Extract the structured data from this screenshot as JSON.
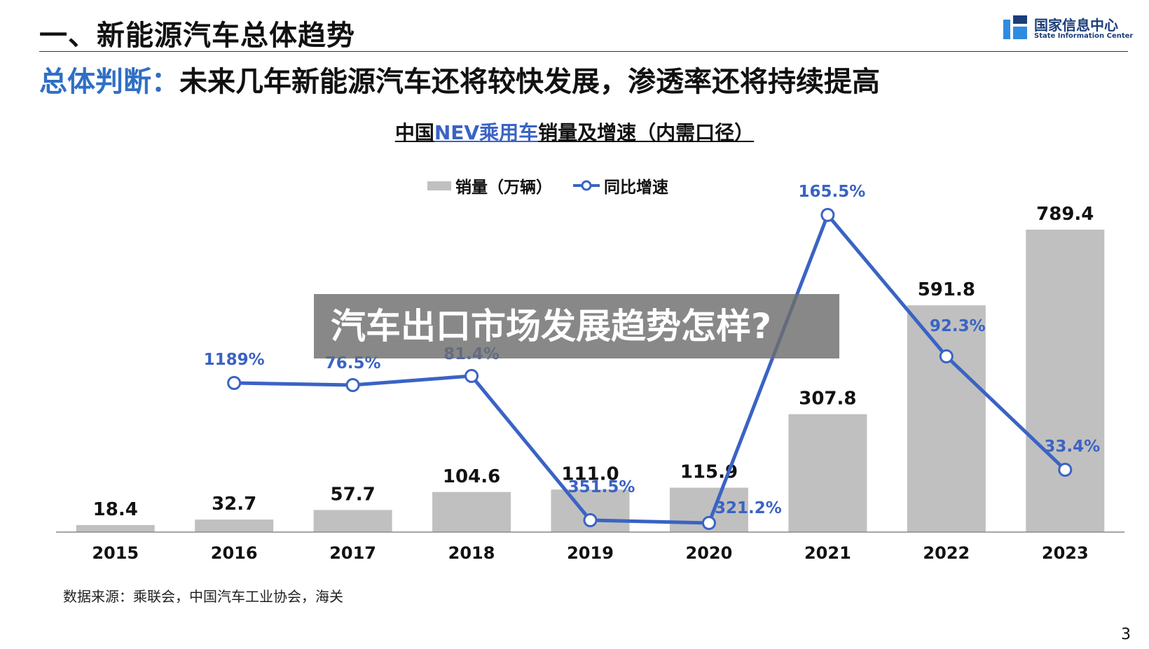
{
  "header": {
    "title": "一、新能源汽车总体趋势",
    "subtitle_label": "总体判断：",
    "subtitle_text": "未来几年新能源汽车还将较快发展，渗透率还将持续提高",
    "logo_cn": "国家信息中心",
    "logo_en": "State Information Center"
  },
  "overlay_text": "汽车出口市场发展趋势怎样?",
  "source": "数据来源：乘联会，中国汽车工业协会，海关",
  "page_number": "3",
  "colors": {
    "bar": "#c0c0c0",
    "line": "#3a63c4",
    "accent": "#2f6fc5"
  },
  "chart_data": {
    "type": "bar",
    "title_parts": {
      "prefix": "中国",
      "accent": "NEV乘用车",
      "suffix": "销量及增速（内需口径）"
    },
    "categories": [
      "2015",
      "2016",
      "2017",
      "2018",
      "2019",
      "2020",
      "2021",
      "2022",
      "2023"
    ],
    "series": [
      {
        "name": "销量（万辆）",
        "type": "bar",
        "values": [
          18.4,
          32.7,
          57.7,
          104.6,
          111.0,
          115.9,
          307.8,
          591.8,
          789.4
        ],
        "labels": [
          "18.4",
          "32.7",
          "57.7",
          "104.6",
          "111.0",
          "115.9",
          "307.8",
          "591.8",
          "789.4"
        ]
      },
      {
        "name": "同比增速",
        "type": "line",
        "values": [
          null,
          1189,
          76.5,
          81.4,
          351.5,
          321.2,
          165.5,
          92.3,
          33.4
        ],
        "labels": [
          "",
          "1189%",
          "76.5%",
          "81.4%",
          "351.5%",
          "321.2%",
          "165.5%",
          "92.3%",
          "33.4%"
        ]
      }
    ],
    "legend_placement": "top-center",
    "grid": false
  }
}
